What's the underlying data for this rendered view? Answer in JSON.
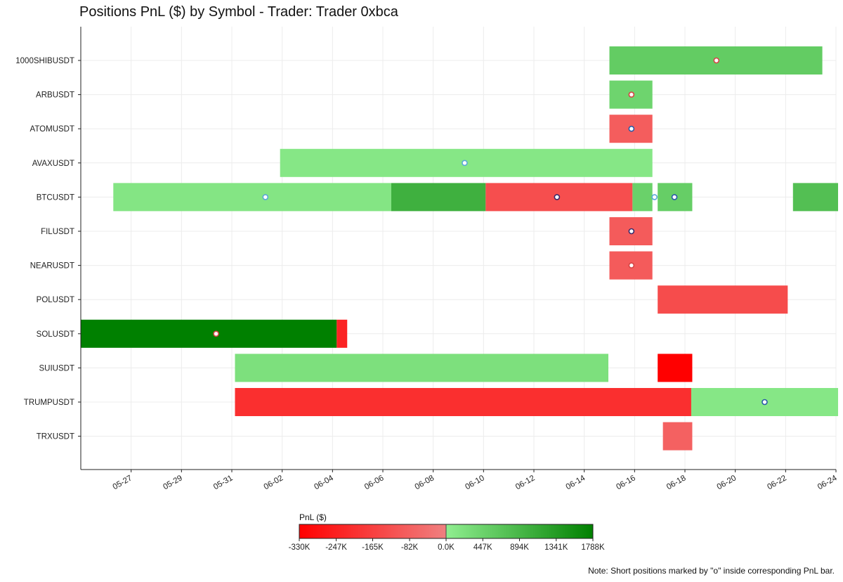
{
  "chart_data": {
    "type": "gantt",
    "title": "Positions PnL ($) by Symbol - Trader: Trader 0xbca",
    "xlabel": "",
    "ylabel": "",
    "x_range": [
      "2025-05-25",
      "2025-06-24"
    ],
    "x_ticks": [
      "05-27",
      "05-29",
      "05-31",
      "06-02",
      "06-04",
      "06-06",
      "06-08",
      "06-10",
      "06-12",
      "06-14",
      "06-16",
      "06-18",
      "06-20",
      "06-22",
      "06-24"
    ],
    "x_tick_dates": [
      "2025-05-27",
      "2025-05-29",
      "2025-05-31",
      "2025-06-02",
      "2025-06-04",
      "2025-06-06",
      "2025-06-08",
      "2025-06-10",
      "2025-06-12",
      "2025-06-14",
      "2025-06-16",
      "2025-06-18",
      "2025-06-20",
      "2025-06-22",
      "2025-06-24"
    ],
    "symbols": [
      "1000SHIBUSDT",
      "ARBUSDT",
      "ATOMUSDT",
      "AVAXUSDT",
      "BTCUSDT",
      "FILUSDT",
      "NEARUSDT",
      "POLUSDT",
      "SOLUSDT",
      "SUIUSDT",
      "TRUMPUSDT",
      "TRXUSDT"
    ],
    "grid": true,
    "bars": [
      {
        "symbol": "1000SHIBUSDT",
        "start": "2025-06-15 00:00",
        "end": "2025-06-23 11:00",
        "pnl": 560000,
        "short": true
      },
      {
        "symbol": "ARBUSDT",
        "start": "2025-06-15 00:00",
        "end": "2025-06-16 17:00",
        "pnl": 420000,
        "short": true
      },
      {
        "symbol": "ATOMUSDT",
        "start": "2025-06-15 00:00",
        "end": "2025-06-16 17:00",
        "pnl": -90000,
        "short": true
      },
      {
        "symbol": "AVAXUSDT",
        "start": "2025-06-01 22:00",
        "end": "2025-06-16 17:00",
        "pnl": 120000,
        "short": true
      },
      {
        "symbol": "BTCUSDT",
        "start": "2025-05-26 07:00",
        "end": "2025-06-06 08:00",
        "pnl": 150000,
        "short": true
      },
      {
        "symbol": "BTCUSDT",
        "start": "2025-06-06 08:00",
        "end": "2025-06-10 02:00",
        "pnl": 1000000,
        "short": false
      },
      {
        "symbol": "BTCUSDT",
        "start": "2025-06-10 02:00",
        "end": "2025-06-15 22:00",
        "pnl": -130000,
        "short": true
      },
      {
        "symbol": "BTCUSDT",
        "start": "2025-06-15 22:00",
        "end": "2025-06-16 17:00",
        "pnl": 470000,
        "short": true
      },
      {
        "symbol": "BTCUSDT",
        "start": "2025-06-16 22:00",
        "end": "2025-06-18 07:00",
        "pnl": 520000,
        "short": true
      },
      {
        "symbol": "BTCUSDT",
        "start": "2025-06-22 07:00",
        "end": "2025-06-24 02:00",
        "pnl": 760000,
        "short": false
      },
      {
        "symbol": "FILUSDT",
        "start": "2025-06-15 00:00",
        "end": "2025-06-16 17:00",
        "pnl": -95000,
        "short": true
      },
      {
        "symbol": "NEARUSDT",
        "start": "2025-06-15 00:00",
        "end": "2025-06-16 17:00",
        "pnl": -95000,
        "short": true
      },
      {
        "symbol": "POLUSDT",
        "start": "2025-06-16 22:00",
        "end": "2025-06-22 02:00",
        "pnl": -135000,
        "short": false
      },
      {
        "symbol": "SOLUSDT",
        "start": "2025-05-25 00:00",
        "end": "2025-06-04 04:00",
        "pnl": 1788000,
        "short": true
      },
      {
        "symbol": "SOLUSDT",
        "start": "2025-06-04 04:00",
        "end": "2025-06-04 14:00",
        "pnl": -240000,
        "short": false
      },
      {
        "symbol": "SUIUSDT",
        "start": "2025-05-31 03:00",
        "end": "2025-06-14 23:00",
        "pnl": 230000,
        "short": false
      },
      {
        "symbol": "SUIUSDT",
        "start": "2025-06-16 22:00",
        "end": "2025-06-18 07:00",
        "pnl": -330000,
        "short": false
      },
      {
        "symbol": "TRUMPUSDT",
        "start": "2025-05-31 03:00",
        "end": "2025-06-18 06:00",
        "pnl": -210000,
        "short": false
      },
      {
        "symbol": "TRUMPUSDT",
        "start": "2025-06-18 06:00",
        "end": "2025-06-24 02:00",
        "pnl": 120000,
        "short": true
      },
      {
        "symbol": "TRXUSDT",
        "start": "2025-06-17 03:00",
        "end": "2025-06-18 07:00",
        "pnl": -80000,
        "short": false
      }
    ],
    "markers": [
      {
        "symbol": "1000SHIBUSDT",
        "date": "2025-06-19 06:00",
        "edge": "#d64545"
      },
      {
        "symbol": "ARBUSDT",
        "date": "2025-06-15 21:00",
        "edge": "#d64545"
      },
      {
        "symbol": "ATOMUSDT",
        "date": "2025-06-15 21:00",
        "edge": "#2a5aa8"
      },
      {
        "symbol": "AVAXUSDT",
        "date": "2025-06-09 06:00",
        "edge": "#5aa8d8"
      },
      {
        "symbol": "BTCUSDT",
        "date": "2025-06-01 08:00",
        "edge": "#5aa8d8"
      },
      {
        "symbol": "BTCUSDT",
        "date": "2025-06-12 22:00",
        "edge": "#3a2a6a"
      },
      {
        "symbol": "BTCUSDT",
        "date": "2025-06-16 19:00",
        "edge": "#5aa8d8"
      },
      {
        "symbol": "BTCUSDT",
        "date": "2025-06-17 14:00",
        "edge": "#2a5aa8"
      },
      {
        "symbol": "FILUSDT",
        "date": "2025-06-15 21:00",
        "edge": "#3a2a6a"
      },
      {
        "symbol": "NEARUSDT",
        "date": "2025-06-15 21:00",
        "edge": "#d64545"
      },
      {
        "symbol": "SOLUSDT",
        "date": "2025-05-30 09:00",
        "edge": "#d64545"
      },
      {
        "symbol": "TRUMPUSDT",
        "date": "2025-06-21 04:00",
        "edge": "#2a5aa8"
      }
    ],
    "colorbar": {
      "label": "PnL ($)",
      "ticks": [
        "-330K",
        "-247K",
        "-165K",
        "-82K",
        "0.0K",
        "447K",
        "894K",
        "1341K",
        "1788K"
      ],
      "tick_values": [
        -330000,
        -247000,
        -165000,
        -82000,
        0,
        447000,
        894000,
        1341000,
        1788000
      ],
      "neg_colors": [
        "#ff0000",
        "#f08080"
      ],
      "pos_colors": [
        "#90ee90",
        "#008000"
      ],
      "min": -330000,
      "max": 1788000
    },
    "note": "Note: Short positions marked by \"o\" inside corresponding PnL bar."
  }
}
